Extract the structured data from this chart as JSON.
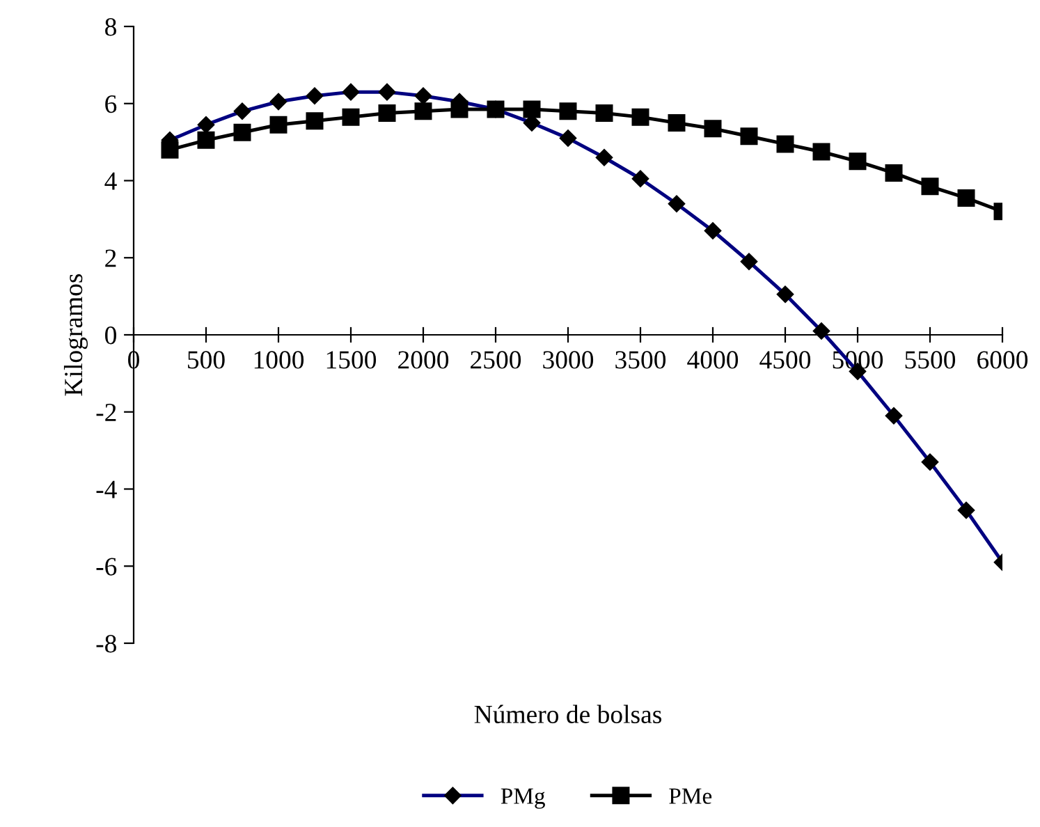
{
  "chart_data": {
    "type": "line",
    "xlabel": "Número de bolsas",
    "ylabel": "Kilogramos",
    "x": [
      250,
      500,
      750,
      1000,
      1250,
      1500,
      1750,
      2000,
      2250,
      2500,
      2750,
      3000,
      3250,
      3500,
      3750,
      4000,
      4250,
      4500,
      4750,
      5000,
      5250,
      5500,
      5750,
      6000
    ],
    "series": [
      {
        "name": "PMg",
        "color": "#000080",
        "marker": "diamond",
        "values": [
          5.05,
          5.45,
          5.8,
          6.05,
          6.2,
          6.3,
          6.3,
          6.2,
          6.05,
          5.85,
          5.5,
          5.1,
          4.6,
          4.05,
          3.4,
          2.7,
          1.9,
          1.05,
          0.1,
          -0.95,
          -2.1,
          -3.3,
          -4.55,
          -5.9
        ]
      },
      {
        "name": "PMe",
        "color": "#000000",
        "marker": "square",
        "values": [
          4.8,
          5.05,
          5.25,
          5.45,
          5.55,
          5.65,
          5.75,
          5.8,
          5.85,
          5.85,
          5.85,
          5.8,
          5.75,
          5.65,
          5.5,
          5.35,
          5.15,
          4.95,
          4.75,
          4.5,
          4.2,
          3.85,
          3.55,
          3.2
        ]
      }
    ],
    "xlim": [
      0,
      6000
    ],
    "xticks": [
      0,
      500,
      1000,
      1500,
      2000,
      2500,
      3000,
      3500,
      4000,
      4500,
      5000,
      5500,
      6000
    ],
    "ylim": [
      -8,
      8
    ],
    "yticks": [
      -8,
      -6,
      -4,
      -2,
      0,
      2,
      4,
      6,
      8
    ],
    "grid": false,
    "legend": "bottom"
  }
}
